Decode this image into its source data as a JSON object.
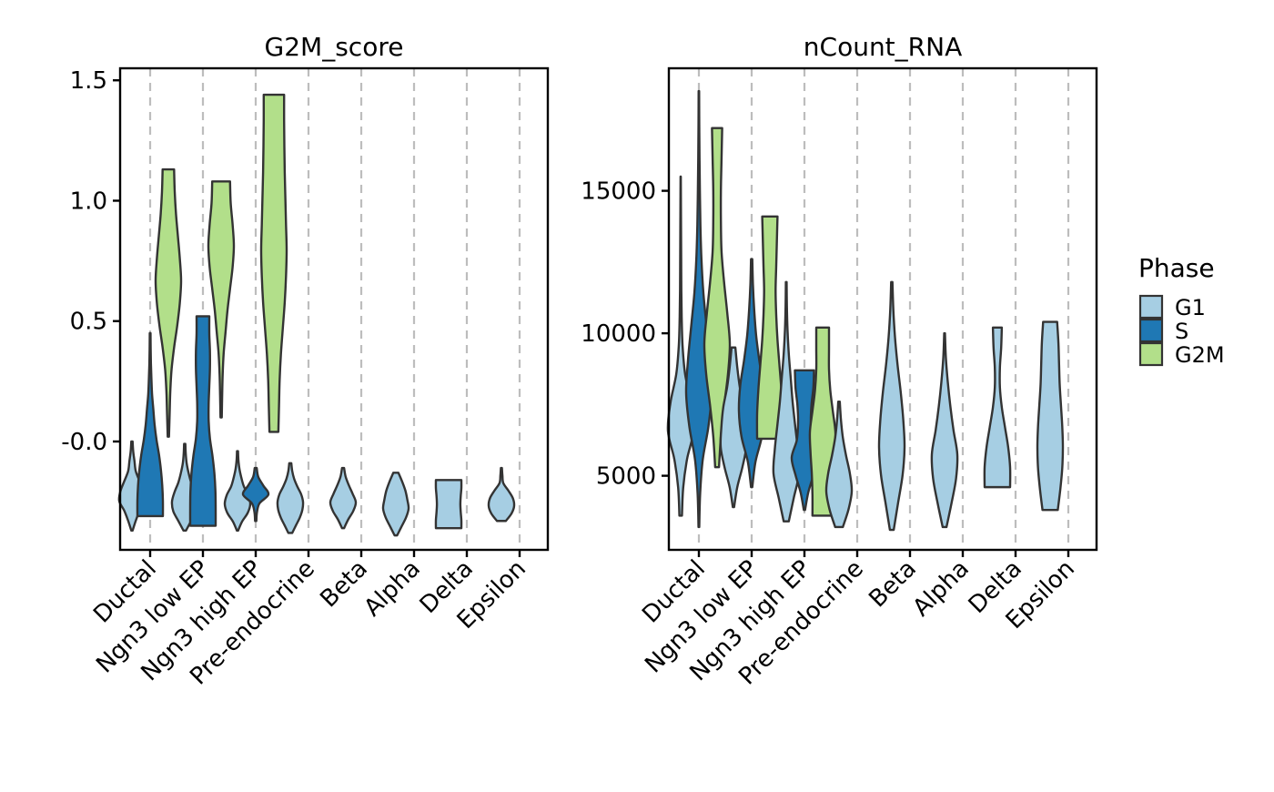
{
  "chart_data": {
    "type": "violin",
    "phase_colors": {
      "G1": "#A6CEE3",
      "S": "#1F78B4",
      "G2M": "#B2DF8A"
    },
    "legend": {
      "title": "Phase",
      "placement": "right",
      "entries": [
        "G1",
        "S",
        "G2M"
      ]
    },
    "categories": [
      "Ductal",
      "Ngn3 low EP",
      "Ngn3 high EP",
      "Pre-endocrine",
      "Beta",
      "Alpha",
      "Delta",
      "Epsilon"
    ],
    "panels": [
      {
        "title": "G2M_score",
        "ylim": [
          -0.45,
          1.55
        ],
        "yticks": [
          -0.0,
          0.5,
          1.0,
          1.5
        ],
        "ytick_labels": [
          "-0.0",
          "0.5",
          "1.0",
          "1.5"
        ],
        "grid": "vertical dashed",
        "violins": [
          {
            "category": "Ductal",
            "phase": "G1",
            "min": -0.37,
            "max": -0.0,
            "profile": [
              0.05,
              0.3,
              0.6,
              1.0,
              0.9,
              0.6,
              0.3,
              0.2,
              0.1,
              0.05
            ]
          },
          {
            "category": "Ductal",
            "phase": "S",
            "min": -0.31,
            "max": 0.45,
            "profile": [
              1.0,
              1.0,
              0.95,
              0.85,
              0.7,
              0.5,
              0.35,
              0.25,
              0.15,
              0.1,
              0.06,
              0.04,
              0.03
            ]
          },
          {
            "category": "Ductal",
            "phase": "G2M",
            "min": 0.02,
            "max": 1.13,
            "profile": [
              0.05,
              0.1,
              0.15,
              0.25,
              0.45,
              0.7,
              0.9,
              1.0,
              0.9,
              0.75,
              0.6,
              0.5,
              0.45
            ]
          },
          {
            "category": "Ngn3 low EP",
            "phase": "G1",
            "min": -0.37,
            "max": -0.01,
            "profile": [
              0.1,
              0.5,
              0.9,
              1.0,
              0.8,
              0.5,
              0.3,
              0.15,
              0.08,
              0.05
            ]
          },
          {
            "category": "Ngn3 low EP",
            "phase": "S",
            "min": -0.35,
            "max": 0.52,
            "profile": [
              1.0,
              1.0,
              0.98,
              0.9,
              0.75,
              0.55,
              0.45,
              0.45,
              0.5,
              0.55,
              0.55,
              0.5,
              0.5
            ]
          },
          {
            "category": "Ngn3 low EP",
            "phase": "G2M",
            "min": 0.1,
            "max": 1.08,
            "profile": [
              0.05,
              0.08,
              0.12,
              0.2,
              0.35,
              0.5,
              0.7,
              0.9,
              1.0,
              0.9,
              0.75,
              0.7
            ]
          },
          {
            "category": "Ngn3 high EP",
            "phase": "G1",
            "min": -0.37,
            "max": -0.04,
            "profile": [
              0.05,
              0.35,
              0.8,
              1.0,
              0.85,
              0.5,
              0.3,
              0.15,
              0.07,
              0.04
            ]
          },
          {
            "category": "Ngn3 high EP",
            "phase": "S",
            "min": -0.33,
            "max": -0.11,
            "profile": [
              0.05,
              0.1,
              0.3,
              1.0,
              0.6,
              0.2,
              0.08
            ]
          },
          {
            "category": "Ngn3 high EP",
            "phase": "G2M",
            "min": 0.04,
            "max": 1.44,
            "profile": [
              0.35,
              0.4,
              0.45,
              0.55,
              0.7,
              0.85,
              0.95,
              1.0,
              0.95,
              0.9,
              0.85,
              0.82,
              0.8,
              0.8
            ]
          },
          {
            "category": "Pre-endocrine",
            "phase": "G1",
            "min": -0.38,
            "max": -0.09,
            "profile": [
              0.15,
              0.45,
              0.75,
              0.95,
              1.0,
              0.85,
              0.55,
              0.3,
              0.15,
              0.08
            ]
          },
          {
            "category": "Pre-endocrine",
            "phase": "S",
            "min": 0,
            "max": 0,
            "profile": []
          },
          {
            "category": "Pre-endocrine",
            "phase": "G2M",
            "min": 0,
            "max": 0,
            "profile": []
          },
          {
            "category": "Beta",
            "phase": "G1",
            "min": -0.36,
            "max": -0.11,
            "profile": [
              0.08,
              0.4,
              0.8,
              1.0,
              0.75,
              0.45,
              0.2,
              0.08
            ]
          },
          {
            "category": "Alpha",
            "phase": "G1",
            "min": -0.39,
            "max": -0.13,
            "profile": [
              0.1,
              0.45,
              0.8,
              1.0,
              0.9,
              0.75,
              0.5,
              0.2
            ]
          },
          {
            "category": "Delta",
            "phase": "G1",
            "min": -0.36,
            "max": -0.16,
            "profile": [
              1.0,
              1.0,
              0.95,
              0.92,
              0.95,
              1.0,
              1.0
            ]
          },
          {
            "category": "Epsilon",
            "phase": "G1",
            "min": -0.33,
            "max": -0.11,
            "profile": [
              0.35,
              0.8,
              1.0,
              0.9,
              0.55,
              0.15,
              0.08,
              0.04
            ]
          }
        ]
      },
      {
        "title": "nCount_RNA",
        "ylim": [
          2400,
          19300
        ],
        "yticks": [
          5000,
          10000,
          15000
        ],
        "ytick_labels": [
          "5000",
          "10000",
          "15000"
        ],
        "grid": "vertical dashed",
        "violins": [
          {
            "category": "Ductal",
            "phase": "G1",
            "min": 3600,
            "max": 15500,
            "profile": [
              0.1,
              0.2,
              0.5,
              1.0,
              0.8,
              0.35,
              0.15,
              0.08,
              0.05,
              0.04,
              0.03,
              0.02,
              0.01
            ]
          },
          {
            "category": "Ductal",
            "phase": "S",
            "min": 3200,
            "max": 18500,
            "profile": [
              0.03,
              0.1,
              0.3,
              0.75,
              1.0,
              0.85,
              0.6,
              0.35,
              0.2,
              0.12,
              0.08,
              0.05,
              0.03,
              0.02
            ]
          },
          {
            "category": "Ductal",
            "phase": "G2M",
            "min": 5300,
            "max": 17200,
            "profile": [
              0.15,
              0.3,
              0.55,
              0.85,
              1.0,
              0.8,
              0.55,
              0.35,
              0.3,
              0.3,
              0.35,
              0.4
            ]
          },
          {
            "category": "Ngn3 low EP",
            "phase": "G1",
            "min": 3900,
            "max": 9500,
            "profile": [
              0.05,
              0.3,
              0.7,
              1.0,
              0.95,
              0.8,
              0.5,
              0.3,
              0.15
            ]
          },
          {
            "category": "Ngn3 low EP",
            "phase": "S",
            "min": 4600,
            "max": 12600,
            "profile": [
              0.05,
              0.3,
              0.8,
              1.0,
              0.9,
              0.6,
              0.35,
              0.2,
              0.1,
              0.05
            ]
          },
          {
            "category": "Ngn3 low EP",
            "phase": "G2M",
            "min": 6300,
            "max": 14100,
            "profile": [
              1.0,
              1.0,
              0.9,
              0.75,
              0.6,
              0.5,
              0.45,
              0.5,
              0.55,
              0.6
            ]
          },
          {
            "category": "Ngn3 high EP",
            "phase": "G1",
            "min": 3400,
            "max": 11800,
            "profile": [
              0.2,
              0.6,
              1.0,
              0.9,
              0.7,
              0.5,
              0.35,
              0.2,
              0.1,
              0.05,
              0.03
            ]
          },
          {
            "category": "Ngn3 high EP",
            "phase": "S",
            "min": 3800,
            "max": 8700,
            "profile": [
              0.05,
              0.3,
              0.7,
              1.0,
              0.6,
              0.5,
              0.55,
              0.7,
              0.75
            ]
          },
          {
            "category": "Ngn3 high EP",
            "phase": "G2M",
            "min": 3600,
            "max": 10200,
            "profile": [
              0.8,
              0.8,
              0.85,
              0.95,
              1.0,
              0.8,
              0.6,
              0.5,
              0.5,
              0.5
            ]
          },
          {
            "category": "Pre-endocrine",
            "phase": "G1",
            "min": 3200,
            "max": 7600,
            "profile": [
              0.3,
              0.75,
              1.0,
              0.85,
              0.55,
              0.3,
              0.15,
              0.06
            ]
          },
          {
            "category": "Beta",
            "phase": "G1",
            "min": 3100,
            "max": 11800,
            "profile": [
              0.15,
              0.5,
              0.85,
              1.0,
              0.9,
              0.7,
              0.45,
              0.25,
              0.12,
              0.05
            ]
          },
          {
            "category": "Alpha",
            "phase": "G1",
            "min": 3200,
            "max": 10000,
            "profile": [
              0.15,
              0.55,
              0.9,
              1.0,
              0.7,
              0.45,
              0.25,
              0.1,
              0.03
            ]
          },
          {
            "category": "Delta",
            "phase": "G1",
            "min": 4600,
            "max": 10200,
            "profile": [
              1.0,
              1.0,
              0.85,
              0.6,
              0.35,
              0.2,
              0.2,
              0.3,
              0.35
            ]
          },
          {
            "category": "Epsilon",
            "phase": "G1",
            "min": 3800,
            "max": 10400,
            "profile": [
              0.6,
              0.8,
              0.95,
              1.0,
              0.95,
              0.85,
              0.75,
              0.7,
              0.65,
              0.55
            ]
          }
        ]
      }
    ]
  }
}
